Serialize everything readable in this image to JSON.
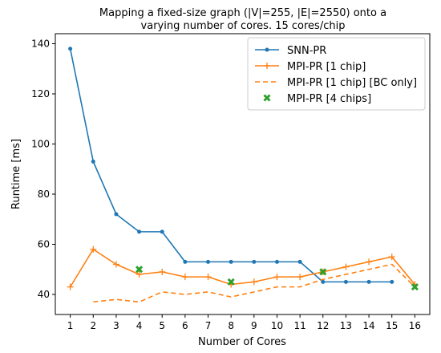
{
  "chart_data": {
    "type": "line",
    "title": [
      "Mapping a fixed-size graph (|V|=255, |E|=2550) onto a",
      "varying number of cores. 15 cores/chip"
    ],
    "xlabel": "Number of Cores",
    "ylabel": "Runtime [ms]",
    "xlim": [
      0.35,
      16.65
    ],
    "ylim": [
      32,
      144
    ],
    "xticks": [
      1,
      2,
      3,
      4,
      5,
      6,
      7,
      8,
      9,
      10,
      11,
      12,
      13,
      14,
      15,
      16
    ],
    "yticks": [
      40,
      60,
      80,
      100,
      120,
      140
    ],
    "grid": false,
    "legend_position": "top-right",
    "series": [
      {
        "name": "SNN-PR",
        "style": "solid-dot",
        "color": "#1f77b4",
        "x": [
          1,
          2,
          3,
          4,
          5,
          6,
          7,
          8,
          9,
          10,
          11,
          12,
          13,
          14,
          15
        ],
        "y": [
          138,
          93,
          72,
          65,
          65,
          53,
          53,
          53,
          53,
          53,
          53,
          45,
          45,
          45,
          45
        ]
      },
      {
        "name": "MPI-PR [1 chip]",
        "style": "solid-plus",
        "color": "#ff7f0e",
        "x": [
          1,
          2,
          3,
          4,
          5,
          6,
          7,
          8,
          9,
          10,
          11,
          12,
          13,
          14,
          15,
          16
        ],
        "y": [
          43,
          58,
          52,
          48,
          49,
          47,
          47,
          44,
          45,
          47,
          47,
          49,
          51,
          53,
          55,
          44
        ]
      },
      {
        "name": "MPI-PR [1 chip] [BC only]",
        "style": "dashed",
        "color": "#ff7f0e",
        "x": [
          2,
          3,
          4,
          5,
          6,
          7,
          8,
          9,
          10,
          11,
          12,
          13,
          14,
          15,
          16
        ],
        "y": [
          37,
          38,
          37,
          41,
          40,
          41,
          39,
          41,
          43,
          43,
          46,
          48,
          50,
          52,
          43
        ]
      },
      {
        "name": "MPI-PR [4 chips]",
        "style": "x-marker",
        "color": "#2ca02c",
        "x": [
          4,
          8,
          12,
          16
        ],
        "y": [
          50,
          45,
          49,
          43
        ]
      }
    ]
  }
}
